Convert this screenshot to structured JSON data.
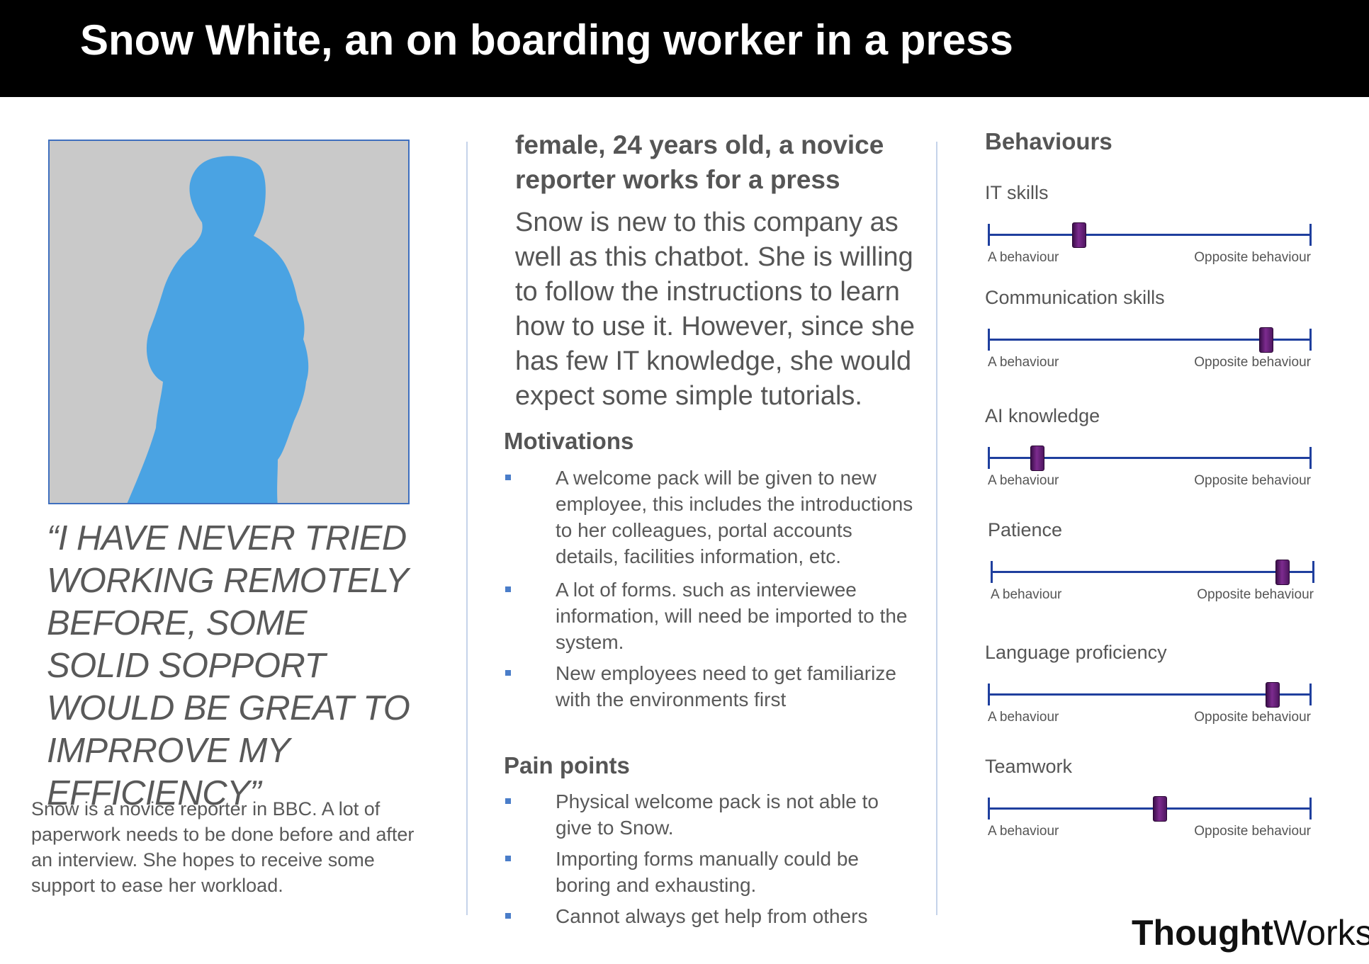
{
  "title": "Snow White, an on boarding worker in a press",
  "quote": "“I  HAVE NEVER TRIED WORKING REMOTELY BEFORE, SOME SOLID SOPPORT WOULD BE GREAT  TO IMPRROVE MY EFFICIENCY”",
  "bio": "Snow is a novice reporter in BBC. A lot of paperwork needs to be done before and after an interview. She hopes to receive some support to ease her workload.",
  "demographics": "female, 24 years old, a novice reporter works for a press",
  "description": "Snow is new to this company as well as this chatbot. She is willing to follow the instructions to learn how to use it. However, since she has few IT knowledge, she would expect some simple tutorials.",
  "motivations": {
    "title": "Motivations",
    "items": [
      "A welcome pack will be given to new employee, this includes the introductions to her colleagues, portal accounts details, facilities information, etc.",
      "A lot of forms. such as interviewee information, will need be imported to the system.",
      "New employees need to get familiarize with the environments first"
    ]
  },
  "pain_points": {
    "title": "Pain points",
    "items": [
      "Physical welcome pack is not able to give to Snow.",
      "Importing forms manually could be boring and exhausting.",
      "Cannot always get help from others"
    ]
  },
  "behaviours": {
    "title": "Behaviours",
    "low_label": "A behaviour",
    "high_label": "Opposite behaviour",
    "items": [
      {
        "label": "IT skills",
        "level": 0.28
      },
      {
        "label": "Communication skills",
        "level": 0.86
      },
      {
        "label": "AI knowledge",
        "level": 0.15
      },
      {
        "label": "Patience",
        "level": 0.9
      },
      {
        "label": "Language proficiency",
        "level": 0.88
      },
      {
        "label": "Teamwork",
        "level": 0.53
      }
    ]
  },
  "logo": {
    "bold": "Thought",
    "regular": "Works",
    "mark": "®"
  },
  "colors": {
    "silhouette": "#4aa3e3",
    "photo_bg": "#c9c9c9",
    "track": "#1f3f9e",
    "knob": "#6a1f7d",
    "bullet": "#4a7dc9"
  }
}
